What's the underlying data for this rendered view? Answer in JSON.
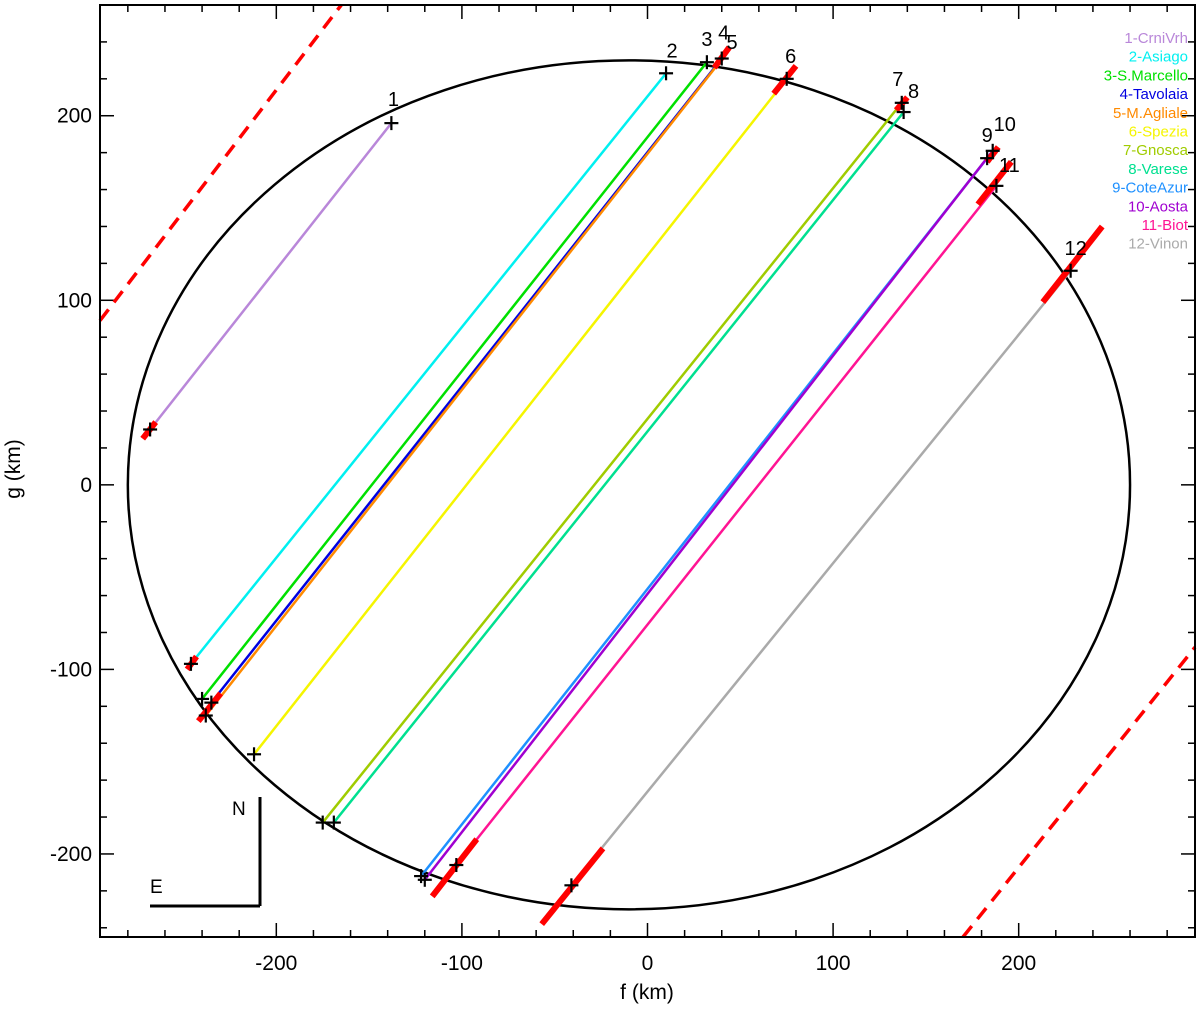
{
  "chart_data": {
    "type": "scatter",
    "title": "",
    "xlabel": "f (km)",
    "ylabel": "g (km)",
    "xlim": [
      -295,
      295
    ],
    "ylim": [
      -245,
      260
    ],
    "x_ticks": [
      -200,
      -100,
      0,
      100,
      200
    ],
    "y_ticks": [
      -200,
      -100,
      0,
      100,
      200
    ],
    "legend_position": "top-right",
    "ellipse": {
      "cx": -10,
      "cy": 0,
      "rx": 270,
      "ry": 230,
      "color": "#000000"
    },
    "compass": {
      "north": "N",
      "east": "E"
    },
    "chords": [
      {
        "id": "1",
        "name": "1-CrniVrh",
        "color": "#b987d9",
        "start": [
          -268,
          30
        ],
        "end": [
          -138,
          196
        ],
        "label": "1",
        "start_mark": true,
        "end_mark": true
      },
      {
        "id": "2",
        "name": "2-Asiago",
        "color": "#00f0f0",
        "start": [
          -246,
          -97
        ],
        "end": [
          10,
          223
        ],
        "label": "2",
        "start_mark": true,
        "end_mark": true
      },
      {
        "id": "3",
        "name": "3-S.Marcello",
        "color": "#00e000",
        "start": [
          -240,
          -116
        ],
        "end": [
          32,
          229
        ],
        "label": "3",
        "start_mark": true,
        "end_mark": true
      },
      {
        "id": "4",
        "name": "4-Tavolaia",
        "color": "#0000e0",
        "start": [
          -235,
          -118
        ],
        "end": [
          40,
          231
        ],
        "label": "4",
        "start_mark": true,
        "end_mark": true
      },
      {
        "id": "5",
        "name": "5-M.Agliale",
        "color": "#ff8a00",
        "start": [
          -238,
          -125
        ],
        "end": [
          38,
          228
        ],
        "label": "5",
        "start_mark": true,
        "end_mark": false
      },
      {
        "id": "6",
        "name": "6-Spezia",
        "color": "#f5f500",
        "start": [
          -212,
          -146
        ],
        "end": [
          75,
          220
        ],
        "label": "6",
        "start_mark": true,
        "end_mark": true
      },
      {
        "id": "7",
        "name": "7-Gnosca",
        "color": "#a0cc00",
        "start": [
          -175,
          -183
        ],
        "end": [
          137,
          207
        ],
        "label": "7",
        "start_mark": true,
        "end_mark": true
      },
      {
        "id": "8",
        "name": "8-Varese",
        "color": "#00e090",
        "start": [
          -169,
          -183
        ],
        "end": [
          138,
          202
        ],
        "label": "8",
        "start_mark": true,
        "end_mark": true
      },
      {
        "id": "9",
        "name": "9-CoteAzur",
        "color": "#1e90ff",
        "start": [
          -122,
          -212
        ],
        "end": [
          183,
          177
        ],
        "label": "9",
        "start_mark": true,
        "end_mark": true
      },
      {
        "id": "10",
        "name": "10-Aosta",
        "color": "#a000d0",
        "start": [
          -120,
          -214
        ],
        "end": [
          186,
          181
        ],
        "label": "10",
        "start_mark": true,
        "end_mark": true
      },
      {
        "id": "11",
        "name": "11-Biot",
        "color": "#ff1493",
        "start": [
          -103,
          -206
        ],
        "end": [
          188,
          162
        ],
        "label": "11",
        "start_mark": true,
        "end_mark": true
      },
      {
        "id": "12",
        "name": "12-Vinon",
        "color": "#aaaaaa",
        "start": [
          -41,
          -217
        ],
        "end": [
          228,
          116
        ],
        "label": "12",
        "start_mark": true,
        "end_mark": true
      }
    ],
    "error_segments": {
      "color": "#ff0000",
      "segments": [
        [
          [
            -272,
            25
          ],
          [
            -265,
            34
          ]
        ],
        [
          [
            -248,
            -100
          ],
          [
            -243,
            -93
          ]
        ],
        [
          [
            -242,
            -128
          ],
          [
            -230,
            -113
          ]
        ],
        [
          [
            36,
            226
          ],
          [
            44,
            237
          ]
        ],
        [
          [
            68,
            212
          ],
          [
            80,
            227
          ]
        ],
        [
          [
            134,
            203
          ],
          [
            140,
            210
          ]
        ],
        [
          [
            183,
            175
          ],
          [
            189,
            183
          ]
        ],
        [
          [
            178,
            152
          ],
          [
            196,
            175
          ]
        ],
        [
          [
            -116,
            -223
          ],
          [
            -92,
            -192
          ]
        ],
        [
          [
            -57,
            -238
          ],
          [
            -24,
            -197
          ]
        ],
        [
          [
            213,
            99
          ],
          [
            245,
            140
          ]
        ]
      ]
    },
    "dashed_bounds": {
      "color": "#ff0000",
      "lines": [
        [
          [
            -295,
            89
          ],
          [
            -165,
            260
          ]
        ],
        [
          [
            170,
            -245
          ],
          [
            295,
            -88
          ]
        ]
      ]
    }
  }
}
